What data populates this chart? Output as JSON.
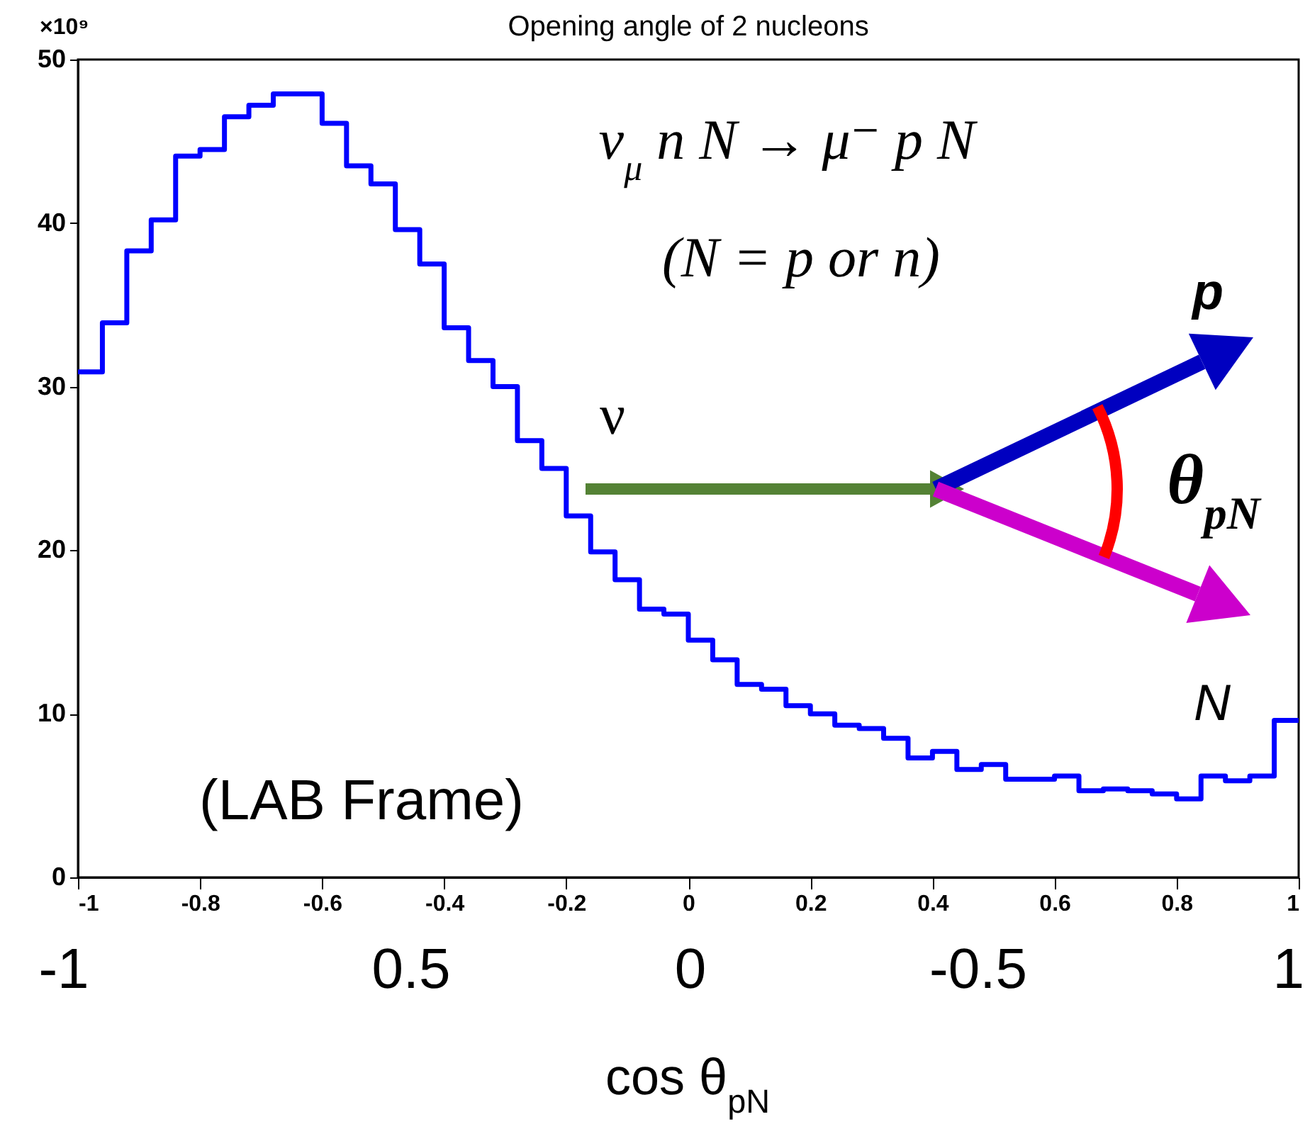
{
  "chart_data": {
    "type": "histogram",
    "title": "Opening angle of 2 nucleons",
    "bins": [
      -1,
      -0.96,
      -0.92,
      -0.88,
      -0.84,
      -0.8,
      -0.76,
      -0.72,
      -0.68,
      -0.64,
      -0.6,
      -0.56,
      -0.52,
      -0.48,
      -0.44,
      -0.4,
      -0.36,
      -0.32,
      -0.28,
      -0.24,
      -0.2,
      -0.16,
      -0.12,
      -0.08,
      -0.04,
      0,
      0.04,
      0.08,
      0.12,
      0.16,
      0.2,
      0.24,
      0.28,
      0.32,
      0.36,
      0.4,
      0.44,
      0.48,
      0.52,
      0.56,
      0.6,
      0.64,
      0.68,
      0.72,
      0.76,
      0.8,
      0.84,
      0.88,
      0.92,
      0.96,
      1
    ],
    "values": [
      30.9,
      33.9,
      38.3,
      40.2,
      44.1,
      44.5,
      46.5,
      47.2,
      47.9,
      47.9,
      46.1,
      43.5,
      42.4,
      39.6,
      37.5,
      33.6,
      31.6,
      30.0,
      26.7,
      25.0,
      22.1,
      19.9,
      18.2,
      16.4,
      16.1,
      14.5,
      13.3,
      11.8,
      11.5,
      10.5,
      10.0,
      9.3,
      9.1,
      8.5,
      7.3,
      7.7,
      6.6,
      6.9,
      6.0,
      6.0,
      6.2,
      5.3,
      5.4,
      5.3,
      5.1,
      4.8,
      6.2,
      5.9,
      6.2,
      9.6
    ],
    "color": "#0000ff",
    "xlim": [
      -1,
      1
    ],
    "xticks": [
      -1,
      -0.8,
      -0.6,
      -0.4,
      -0.2,
      0,
      0.2,
      0.4,
      0.6,
      0.8,
      1
    ],
    "ylim": [
      0,
      50
    ],
    "yticks": [
      0,
      10,
      20,
      30,
      40,
      50
    ],
    "xlabel": "cos θ$_{pN}$",
    "annotations": [
      "×10⁹",
      "ν$_{μ}$ n N → μ⁻ p N",
      "(N = p or n)",
      "(LAB Frame)",
      "ν",
      "p",
      "N",
      "θ$_{pN}$",
      "-1",
      "0.5",
      "0",
      "-0.5",
      "1"
    ]
  }
}
